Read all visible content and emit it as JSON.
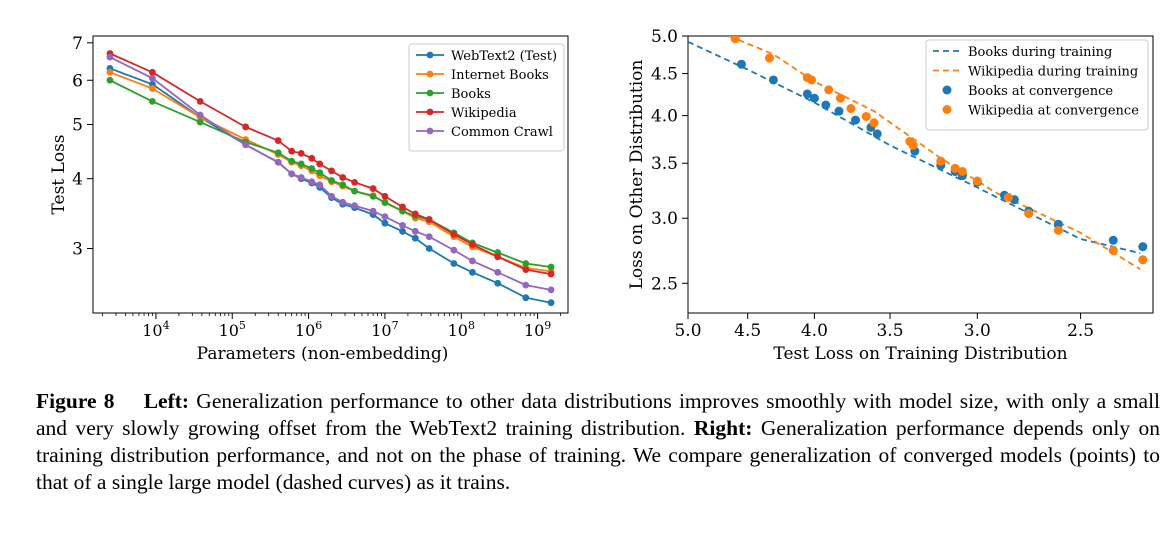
{
  "chart_data": [
    {
      "type": "line",
      "xscale": "log",
      "yscale": "log",
      "xlabel": "Parameters (non-embedding)",
      "ylabel": "Test Loss",
      "xlim": [
        1500,
        2500000000
      ],
      "ylim": [
        2.3,
        7.2
      ],
      "xticks": [
        {
          "value": 10000,
          "base": "10",
          "exp": "4"
        },
        {
          "value": 100000,
          "base": "10",
          "exp": "5"
        },
        {
          "value": 1000000,
          "base": "10",
          "exp": "6"
        },
        {
          "value": 10000000,
          "base": "10",
          "exp": "7"
        },
        {
          "value": 100000000,
          "base": "10",
          "exp": "8"
        },
        {
          "value": 1000000000,
          "base": "10",
          "exp": "9"
        }
      ],
      "yticks": [
        {
          "value": 3,
          "label": "3"
        },
        {
          "value": 4,
          "label": "4"
        },
        {
          "value": 5,
          "label": "5"
        },
        {
          "value": 6,
          "label": "6"
        },
        {
          "value": 7,
          "label": "7"
        }
      ],
      "legend_position": "top-right",
      "series": [
        {
          "name": "WebText2 (Test)",
          "color": "#1f77b4",
          "x": [
            2500,
            9000,
            38000,
            150000,
            400000,
            600000,
            800000,
            1100000,
            1400000,
            2000000,
            2800000,
            4000000,
            7000000,
            10000000,
            17000000,
            25000000,
            38000000,
            80000000,
            140000000,
            300000000,
            700000000,
            1500000000
          ],
          "y": [
            6.3,
            5.9,
            5.15,
            4.6,
            4.28,
            4.08,
            4.0,
            3.93,
            3.86,
            3.7,
            3.6,
            3.55,
            3.45,
            3.33,
            3.22,
            3.13,
            3.0,
            2.82,
            2.72,
            2.6,
            2.45,
            2.4
          ]
        },
        {
          "name": "Internet Books",
          "color": "#ff7f0e",
          "x": [
            2500,
            9000,
            38000,
            150000,
            400000,
            600000,
            800000,
            1100000,
            1400000,
            2000000,
            2800000,
            4000000,
            7000000,
            10000000,
            17000000,
            25000000,
            38000000,
            80000000,
            140000000,
            300000000,
            700000000,
            1500000000
          ],
          "y": [
            6.2,
            5.8,
            5.15,
            4.7,
            4.42,
            4.28,
            4.22,
            4.13,
            4.05,
            3.95,
            3.88,
            3.8,
            3.73,
            3.62,
            3.5,
            3.4,
            3.35,
            3.15,
            3.02,
            2.9,
            2.77,
            2.73
          ]
        },
        {
          "name": "Books",
          "color": "#2ca02c",
          "x": [
            2500,
            9000,
            38000,
            150000,
            400000,
            600000,
            800000,
            1100000,
            1400000,
            2000000,
            2800000,
            4000000,
            7000000,
            10000000,
            17000000,
            25000000,
            38000000,
            80000000,
            140000000,
            300000000,
            700000000,
            1500000000
          ],
          "y": [
            6.0,
            5.5,
            5.05,
            4.65,
            4.45,
            4.3,
            4.25,
            4.17,
            4.1,
            3.97,
            3.9,
            3.8,
            3.72,
            3.63,
            3.5,
            3.43,
            3.38,
            3.2,
            3.07,
            2.95,
            2.82,
            2.78
          ]
        },
        {
          "name": "Wikipedia",
          "color": "#d62728",
          "x": [
            2500,
            9000,
            38000,
            150000,
            400000,
            600000,
            800000,
            1100000,
            1400000,
            2000000,
            2800000,
            4000000,
            7000000,
            10000000,
            17000000,
            25000000,
            38000000,
            80000000,
            140000000,
            300000000,
            700000000,
            1500000000
          ],
          "y": [
            6.7,
            6.2,
            5.5,
            4.95,
            4.68,
            4.48,
            4.44,
            4.35,
            4.25,
            4.13,
            4.02,
            3.94,
            3.84,
            3.72,
            3.56,
            3.46,
            3.38,
            3.18,
            3.05,
            2.9,
            2.75,
            2.7
          ]
        },
        {
          "name": "Common Crawl",
          "color": "#9467bd",
          "x": [
            2500,
            9000,
            38000,
            150000,
            400000,
            600000,
            800000,
            1100000,
            1400000,
            2000000,
            2800000,
            4000000,
            7000000,
            10000000,
            17000000,
            25000000,
            38000000,
            80000000,
            140000000,
            300000000,
            700000000,
            1500000000
          ],
          "y": [
            6.6,
            6.05,
            5.2,
            4.6,
            4.28,
            4.08,
            4.02,
            3.95,
            3.9,
            3.72,
            3.63,
            3.58,
            3.5,
            3.42,
            3.3,
            3.22,
            3.15,
            2.98,
            2.85,
            2.72,
            2.58,
            2.53
          ]
        }
      ]
    },
    {
      "type": "scatter",
      "xscale": "log",
      "yscale": "log",
      "x_inverted": true,
      "xlabel": "Test Loss on Training Distribution",
      "ylabel": "Loss on Other Distribution",
      "xlim": [
        5.0,
        2.2
      ],
      "ylim": [
        2.3,
        5.0
      ],
      "xticks": [
        {
          "value": 5.0,
          "label": "5.0"
        },
        {
          "value": 4.5,
          "label": "4.5"
        },
        {
          "value": 4.0,
          "label": "4.0"
        },
        {
          "value": 3.5,
          "label": "3.5"
        },
        {
          "value": 3.0,
          "label": "3.0"
        },
        {
          "value": 2.5,
          "label": "2.5"
        }
      ],
      "yticks": [
        {
          "value": 2.5,
          "label": "2.5"
        },
        {
          "value": 3.0,
          "label": "3.0"
        },
        {
          "value": 3.5,
          "label": "3.5"
        },
        {
          "value": 4.0,
          "label": "4.0"
        },
        {
          "value": 4.5,
          "label": "4.5"
        },
        {
          "value": 5.0,
          "label": "5.0"
        }
      ],
      "legend_position": "top-right",
      "series": [
        {
          "name": "Books during training",
          "kind": "dashed",
          "color": "#1f77b4",
          "x": [
            5.0,
            4.5,
            4.0,
            3.5,
            3.0,
            2.5,
            2.25
          ],
          "y": [
            4.92,
            4.55,
            4.15,
            3.68,
            3.27,
            2.83,
            2.72
          ]
        },
        {
          "name": "Wikipedia during training",
          "kind": "dashed",
          "color": "#ff7f0e",
          "x": [
            4.65,
            4.3,
            4.0,
            3.6,
            3.2,
            2.9,
            2.5,
            2.25
          ],
          "y": [
            5.0,
            4.75,
            4.4,
            4.05,
            3.55,
            3.22,
            2.88,
            2.6
          ]
        },
        {
          "name": "Books at convergence",
          "kind": "points",
          "color": "#1f77b4",
          "x": [
            4.55,
            4.3,
            4.05,
            4.0,
            3.92,
            3.83,
            3.72,
            3.62,
            3.58,
            3.35,
            3.2,
            3.12,
            3.08,
            3.0,
            2.86,
            2.81,
            2.74,
            2.6,
            2.36,
            2.24
          ],
          "y": [
            4.62,
            4.42,
            4.25,
            4.2,
            4.12,
            4.05,
            3.95,
            3.87,
            3.8,
            3.62,
            3.48,
            3.42,
            3.38,
            3.32,
            3.2,
            3.16,
            3.06,
            2.95,
            2.82,
            2.77
          ]
        },
        {
          "name": "Wikipedia at convergence",
          "kind": "points",
          "color": "#ff7f0e",
          "x": [
            4.6,
            4.33,
            4.05,
            4.02,
            3.9,
            3.82,
            3.75,
            3.65,
            3.6,
            3.38,
            3.36,
            3.2,
            3.12,
            3.08,
            3.0,
            2.84,
            2.74,
            2.6,
            2.36,
            2.24
          ],
          "y": [
            4.96,
            4.7,
            4.45,
            4.42,
            4.3,
            4.2,
            4.08,
            3.99,
            3.92,
            3.72,
            3.68,
            3.52,
            3.45,
            3.42,
            3.33,
            3.18,
            3.04,
            2.9,
            2.74,
            2.67
          ]
        }
      ]
    }
  ],
  "caption": {
    "figure_label": "Figure 8",
    "left_label": "Left:",
    "left_text": "Generalization performance to other data distributions improves smoothly with model size, with only a small and very slowly growing offset from the WebText2 training distribution.",
    "right_label": "Right:",
    "right_text": "Generalization performance depends only on training distribution performance, and not on the phase of training. We compare generalization of converged models (points) to that of a single large model (dashed curves) as it trains."
  }
}
